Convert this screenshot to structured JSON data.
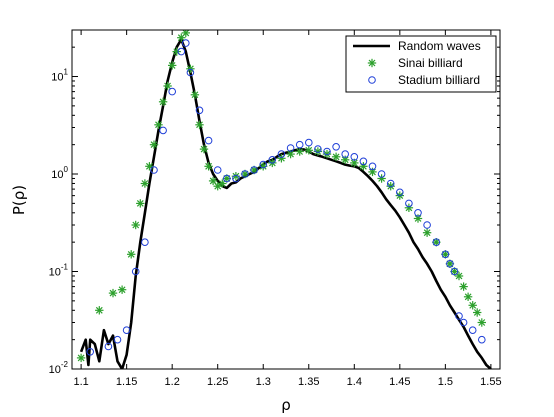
{
  "chart_data": {
    "type": "line",
    "xlabel": "ρ",
    "ylabel": "P(ρ)",
    "xlim": [
      1.09,
      1.56
    ],
    "ylim": [
      0.01,
      30
    ],
    "yscale": "log",
    "grid": false,
    "legend_position": "top-right",
    "x_ticks": [
      "1.1",
      "1.15",
      "1.2",
      "1.25",
      "1.3",
      "1.35",
      "1.4",
      "1.45",
      "1.5",
      "1.55"
    ],
    "y_ticks": [
      {
        "base": "10",
        "exp": "-2",
        "value": 0.01
      },
      {
        "base": "10",
        "exp": "-1",
        "value": 0.1
      },
      {
        "base": "10",
        "exp": "0",
        "value": 1
      },
      {
        "base": "10",
        "exp": "1",
        "value": 10
      }
    ],
    "series": [
      {
        "name": "Random waves",
        "style": "line",
        "color": "#000000",
        "x": [
          1.1,
          1.105,
          1.108,
          1.11,
          1.115,
          1.12,
          1.125,
          1.13,
          1.135,
          1.14,
          1.145,
          1.15,
          1.155,
          1.16,
          1.165,
          1.17,
          1.175,
          1.18,
          1.185,
          1.19,
          1.195,
          1.2,
          1.205,
          1.21,
          1.215,
          1.22,
          1.225,
          1.23,
          1.235,
          1.24,
          1.245,
          1.25,
          1.255,
          1.26,
          1.265,
          1.27,
          1.275,
          1.28,
          1.285,
          1.29,
          1.295,
          1.3,
          1.305,
          1.31,
          1.315,
          1.32,
          1.325,
          1.33,
          1.335,
          1.34,
          1.345,
          1.35,
          1.355,
          1.36,
          1.365,
          1.37,
          1.375,
          1.38,
          1.385,
          1.39,
          1.395,
          1.4,
          1.405,
          1.41,
          1.415,
          1.42,
          1.425,
          1.43,
          1.435,
          1.44,
          1.445,
          1.45,
          1.455,
          1.46,
          1.465,
          1.47,
          1.475,
          1.48,
          1.485,
          1.49,
          1.495,
          1.5,
          1.505,
          1.51,
          1.515,
          1.52,
          1.525,
          1.53,
          1.535,
          1.54,
          1.545,
          1.55
        ],
        "y": [
          0.015,
          0.02,
          0.011,
          0.02,
          0.018,
          0.012,
          0.025,
          0.018,
          0.022,
          0.012,
          0.01,
          0.014,
          0.03,
          0.09,
          0.2,
          0.4,
          0.8,
          1.5,
          2.8,
          5.0,
          9.0,
          14,
          20,
          24,
          18,
          11,
          6.5,
          3.5,
          2.0,
          1.3,
          1.0,
          0.85,
          0.75,
          0.72,
          0.8,
          0.82,
          0.9,
          0.95,
          1.0,
          1.05,
          1.15,
          1.25,
          1.35,
          1.4,
          1.5,
          1.6,
          1.65,
          1.7,
          1.75,
          1.8,
          1.78,
          1.7,
          1.6,
          1.55,
          1.5,
          1.45,
          1.4,
          1.35,
          1.3,
          1.25,
          1.22,
          1.2,
          1.15,
          1.05,
          0.95,
          0.85,
          0.75,
          0.65,
          0.55,
          0.48,
          0.42,
          0.36,
          0.3,
          0.25,
          0.2,
          0.17,
          0.14,
          0.12,
          0.1,
          0.08,
          0.065,
          0.055,
          0.045,
          0.038,
          0.032,
          0.027,
          0.022,
          0.018,
          0.015,
          0.013,
          0.011,
          0.01
        ]
      },
      {
        "name": "Sinai billiard",
        "style": "star",
        "color": "#2ca02c",
        "x": [
          1.1,
          1.12,
          1.135,
          1.145,
          1.155,
          1.16,
          1.165,
          1.17,
          1.175,
          1.18,
          1.185,
          1.19,
          1.195,
          1.2,
          1.205,
          1.21,
          1.215,
          1.22,
          1.225,
          1.23,
          1.235,
          1.24,
          1.245,
          1.25,
          1.255,
          1.26,
          1.27,
          1.28,
          1.29,
          1.3,
          1.31,
          1.32,
          1.33,
          1.34,
          1.35,
          1.36,
          1.37,
          1.38,
          1.39,
          1.4,
          1.41,
          1.42,
          1.43,
          1.44,
          1.45,
          1.46,
          1.47,
          1.48,
          1.49,
          1.5,
          1.505,
          1.51,
          1.515,
          1.52,
          1.525,
          1.53,
          1.535,
          1.54
        ],
        "y": [
          0.013,
          0.04,
          0.06,
          0.065,
          0.15,
          0.3,
          0.5,
          0.8,
          1.2,
          2.0,
          3.2,
          5.5,
          8,
          13,
          18,
          25,
          28,
          12,
          6.5,
          3.2,
          1.8,
          1.2,
          0.85,
          0.75,
          0.8,
          0.9,
          0.95,
          1.0,
          1.1,
          1.2,
          1.3,
          1.45,
          1.6,
          1.7,
          1.75,
          1.7,
          1.6,
          1.5,
          1.4,
          1.3,
          1.2,
          1.05,
          0.9,
          0.75,
          0.6,
          0.45,
          0.35,
          0.25,
          0.2,
          0.15,
          0.12,
          0.1,
          0.09,
          0.07,
          0.055,
          0.045,
          0.038,
          0.03
        ]
      },
      {
        "name": "Stadium billiard",
        "style": "circle",
        "color": "#1f3fd8",
        "x": [
          1.11,
          1.13,
          1.14,
          1.15,
          1.16,
          1.17,
          1.18,
          1.19,
          1.2,
          1.21,
          1.215,
          1.22,
          1.23,
          1.24,
          1.25,
          1.26,
          1.27,
          1.28,
          1.29,
          1.3,
          1.31,
          1.32,
          1.33,
          1.34,
          1.35,
          1.36,
          1.37,
          1.38,
          1.39,
          1.4,
          1.41,
          1.42,
          1.43,
          1.44,
          1.45,
          1.46,
          1.47,
          1.48,
          1.49,
          1.5,
          1.505,
          1.51,
          1.515,
          1.52,
          1.53,
          1.54
        ],
        "y": [
          0.015,
          0.017,
          0.02,
          0.025,
          0.1,
          0.2,
          1.1,
          2.8,
          7,
          18,
          22,
          11,
          4.5,
          2.2,
          1.1,
          0.9,
          0.9,
          1.0,
          1.1,
          1.25,
          1.4,
          1.6,
          1.85,
          2.0,
          2.1,
          1.8,
          1.7,
          1.9,
          1.6,
          1.5,
          1.35,
          1.2,
          1.0,
          0.8,
          0.65,
          0.5,
          0.4,
          0.3,
          0.2,
          0.15,
          0.12,
          0.1,
          0.035,
          0.03,
          0.025,
          0.02
        ]
      }
    ]
  }
}
